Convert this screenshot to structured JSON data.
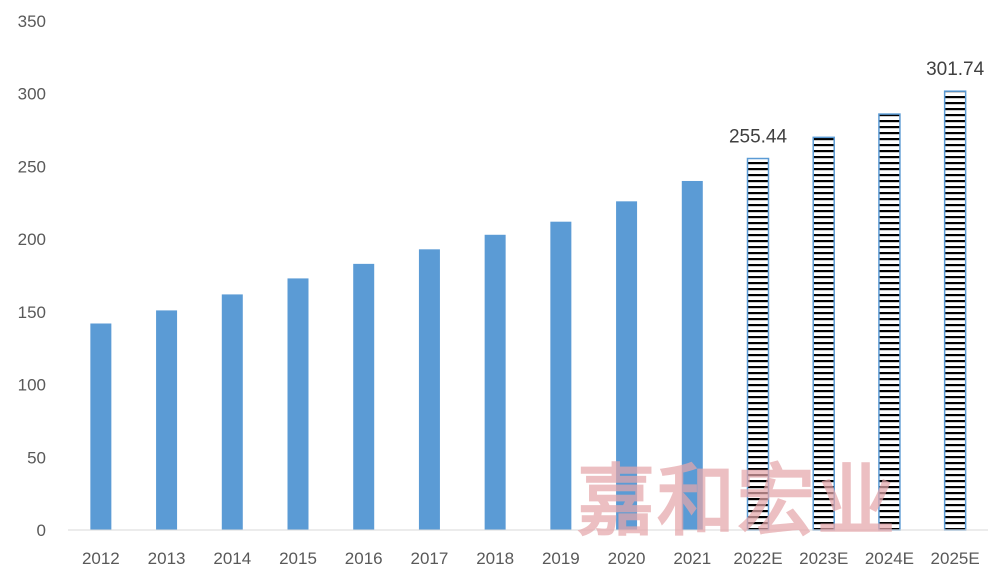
{
  "chart_data": {
    "type": "bar",
    "categories": [
      "2012",
      "2013",
      "2014",
      "2015",
      "2016",
      "2017",
      "2018",
      "2019",
      "2020",
      "2021",
      "2022E",
      "2023E",
      "2024E",
      "2025E"
    ],
    "values": [
      142,
      151,
      162,
      173,
      183,
      193,
      203,
      212,
      226,
      240,
      255.44,
      270,
      286,
      301.74
    ],
    "forecast_from_index": 10,
    "data_labels": [
      {
        "category": "2022E",
        "text": "255.44"
      },
      {
        "category": "2025E",
        "text": "301.74"
      }
    ],
    "title": "",
    "xlabel": "",
    "ylabel": "",
    "ylim": [
      0,
      350
    ],
    "yticks": [
      "0",
      "50",
      "100",
      "150",
      "200",
      "250",
      "300",
      "350"
    ],
    "grid": false,
    "legend": "none",
    "colors": {
      "actual": "#5b9bd5",
      "forecast_border": "#5b9bd5",
      "forecast_stripe": "#000000",
      "axis": "#d9d9d9",
      "text": "#595959"
    }
  },
  "watermark": "嘉和宏业"
}
